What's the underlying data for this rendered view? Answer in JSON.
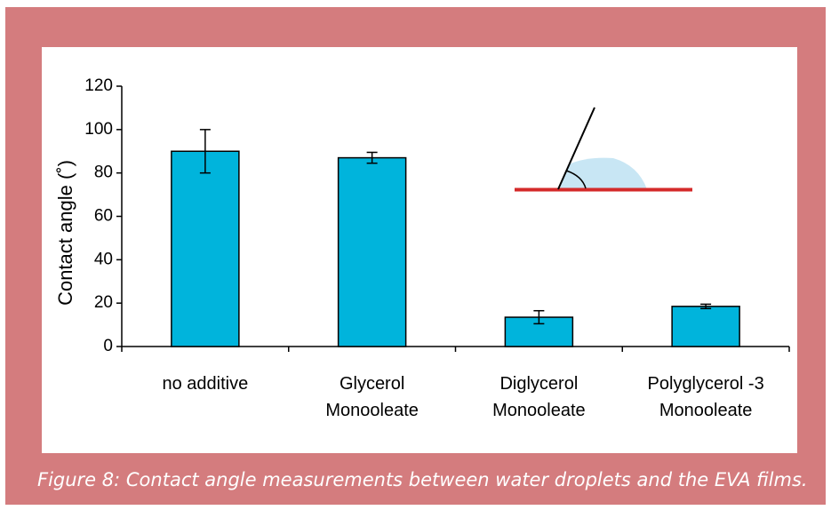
{
  "chart_data": {
    "type": "bar",
    "y_label": "Contact angle (˚)",
    "categories": [
      "no additive",
      "Glycerol\nMonooleate",
      "Diglycerol\nMonooleate",
      "Polyglycerol -3\nMonooleate"
    ],
    "values": [
      90,
      87,
      13.5,
      18.5
    ],
    "errors": [
      10,
      2.5,
      3,
      1
    ],
    "color": "#00b4dc",
    "ylim": [
      0,
      120
    ],
    "yticks": [
      0,
      20,
      40,
      60,
      80,
      100,
      120
    ],
    "grid": false,
    "caption": "Figure 8: Contact angle measurements between water droplets and the EVA films."
  }
}
